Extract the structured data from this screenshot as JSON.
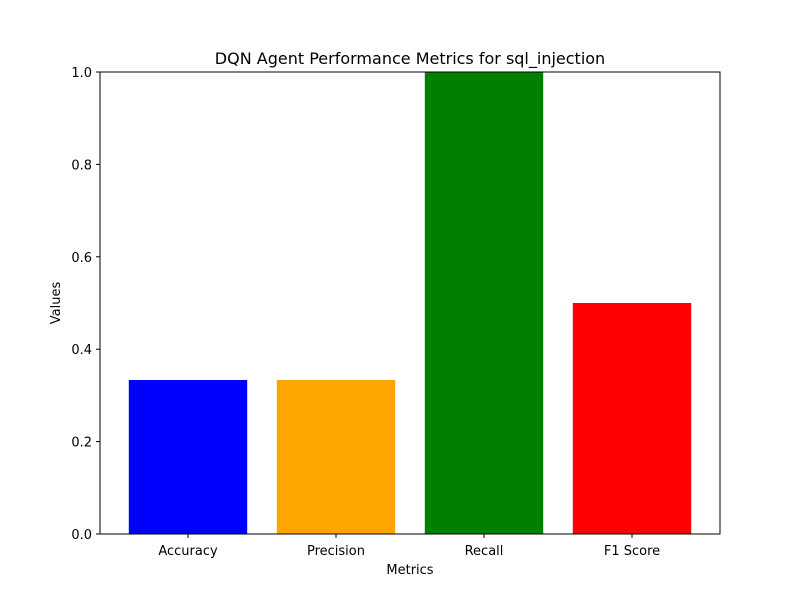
{
  "chart_data": {
    "type": "bar",
    "title": "DQN Agent Performance Metrics for sql_injection",
    "xlabel": "Metrics",
    "ylabel": "Values",
    "categories": [
      "Accuracy",
      "Precision",
      "Recall",
      "F1 Score"
    ],
    "values": [
      0.3333,
      0.3333,
      1.0,
      0.5
    ],
    "colors": [
      "#0000ff",
      "#ffa500",
      "#008000",
      "#ff0000"
    ],
    "ylim": [
      0,
      1.0
    ],
    "yticks": [
      0.0,
      0.2,
      0.4,
      0.6,
      0.8,
      1.0
    ],
    "ytick_labels": [
      "0.0",
      "0.2",
      "0.4",
      "0.6",
      "0.8",
      "1.0"
    ],
    "grid": false,
    "legend": "none"
  }
}
